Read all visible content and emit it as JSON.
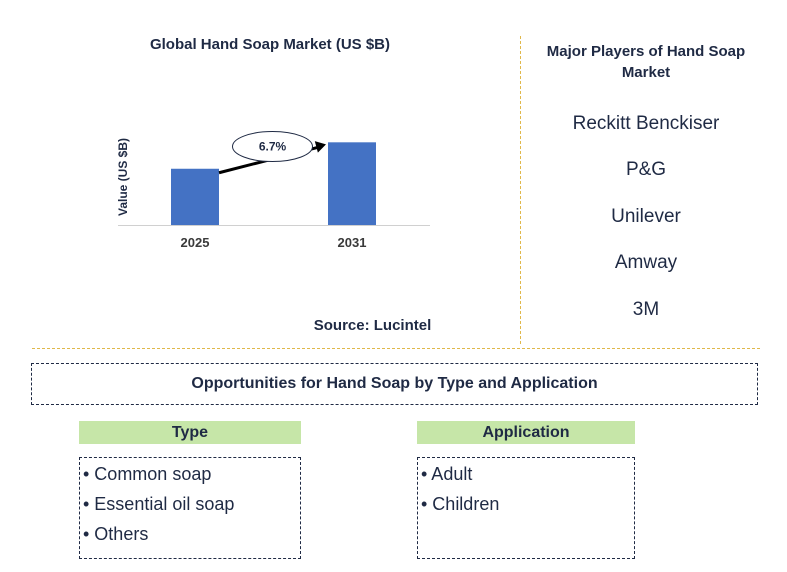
{
  "chart_data": {
    "type": "bar",
    "title": "Global Hand Soap Market (US $B)",
    "ylabel": "Value (US $B)",
    "xlabel": "",
    "categories": [
      "2025",
      "2031"
    ],
    "values": [
      1.0,
      1.47
    ],
    "ylim": [
      0,
      1.6
    ],
    "annotation": "6.7%",
    "bar_color": "#4472c4",
    "grid": false
  },
  "source": "Source: Lucintel",
  "players": {
    "title": "Major Players of Hand Soap Market",
    "items": [
      "Reckitt Benckiser",
      "P&G",
      "Unilever",
      "Amway",
      "3M"
    ]
  },
  "opportunities": {
    "title": "Opportunities for Hand Soap by Type and Application",
    "type": {
      "header": "Type",
      "items": [
        "• Common soap",
        "• Essential oil soap",
        "• Others"
      ]
    },
    "application": {
      "header": "Application",
      "items": [
        "• Adult",
        "• Children"
      ]
    }
  },
  "colors": {
    "accent_green": "#c6e6a8",
    "divider_gold": "#e0b84a",
    "text_navy": "#1f2a44"
  }
}
